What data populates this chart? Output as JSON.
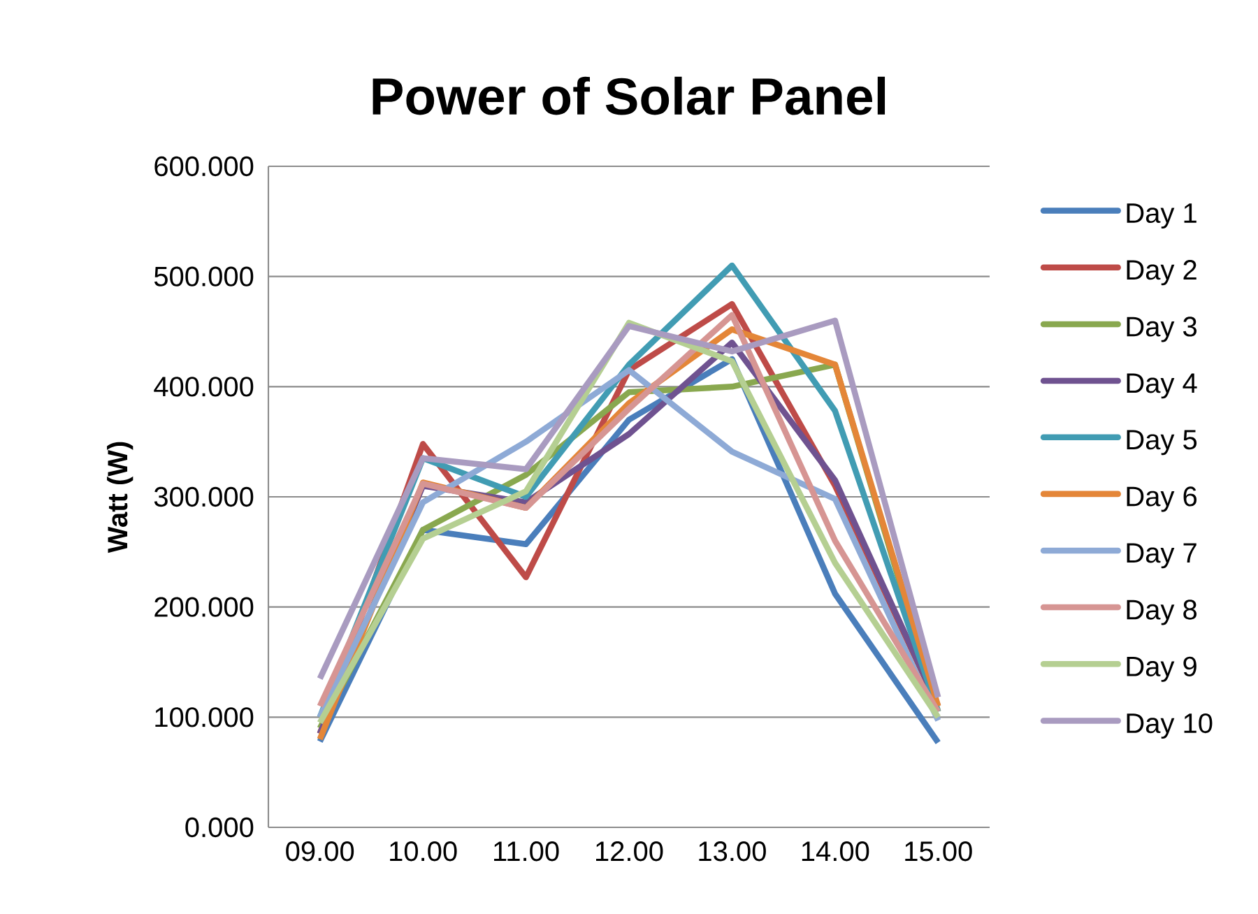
{
  "chart_data": {
    "type": "line",
    "title": "Power of Solar Panel",
    "ylabel": "Watt (W)",
    "categories": [
      "09.00",
      "10.00",
      "11.00",
      "12.00",
      "13.00",
      "14.00",
      "15.00"
    ],
    "ylim": [
      0,
      600
    ],
    "yticks": [
      {
        "value": 0,
        "label": "0.000"
      },
      {
        "value": 100,
        "label": "100.000"
      },
      {
        "value": 200,
        "label": "200.000"
      },
      {
        "value": 300,
        "label": "300.000"
      },
      {
        "value": 400,
        "label": "400.000"
      },
      {
        "value": 500,
        "label": "500.000"
      },
      {
        "value": 600,
        "label": "600.000"
      }
    ],
    "grid": "y",
    "legend": "right",
    "marker": "none",
    "line_style": "solid",
    "series": [
      {
        "name": "Day  1",
        "color": "#4a7ebb",
        "values": [
          78,
          270,
          257,
          370,
          425,
          212,
          77
        ]
      },
      {
        "name": "Day 2",
        "color": "#be4b48",
        "values": [
          85,
          348,
          227,
          415,
          475,
          310,
          110
        ]
      },
      {
        "name": "Day 3",
        "color": "#89a84f",
        "values": [
          90,
          270,
          320,
          395,
          400,
          420,
          105
        ]
      },
      {
        "name": "Day 4",
        "color": "#6f5290",
        "values": [
          85,
          310,
          295,
          357,
          440,
          315,
          110
        ]
      },
      {
        "name": "Day 5",
        "color": "#419cb3",
        "values": [
          100,
          335,
          300,
          420,
          510,
          378,
          105
        ]
      },
      {
        "name": "Day 6",
        "color": "#e48638",
        "values": [
          80,
          313,
          290,
          385,
          452,
          420,
          110
        ]
      },
      {
        "name": "Day 7",
        "color": "#8eaad6",
        "values": [
          100,
          295,
          350,
          415,
          341,
          298,
          97
        ]
      },
      {
        "name": "Day 8",
        "color": "#d69593",
        "values": [
          110,
          312,
          290,
          380,
          465,
          260,
          105
        ]
      },
      {
        "name": "Day 9",
        "color": "#b5cf92",
        "values": [
          95,
          262,
          305,
          458,
          423,
          240,
          100
        ]
      },
      {
        "name": "Day 10",
        "color": "#a99bc0",
        "values": [
          135,
          335,
          325,
          455,
          432,
          460,
          118
        ]
      }
    ]
  }
}
